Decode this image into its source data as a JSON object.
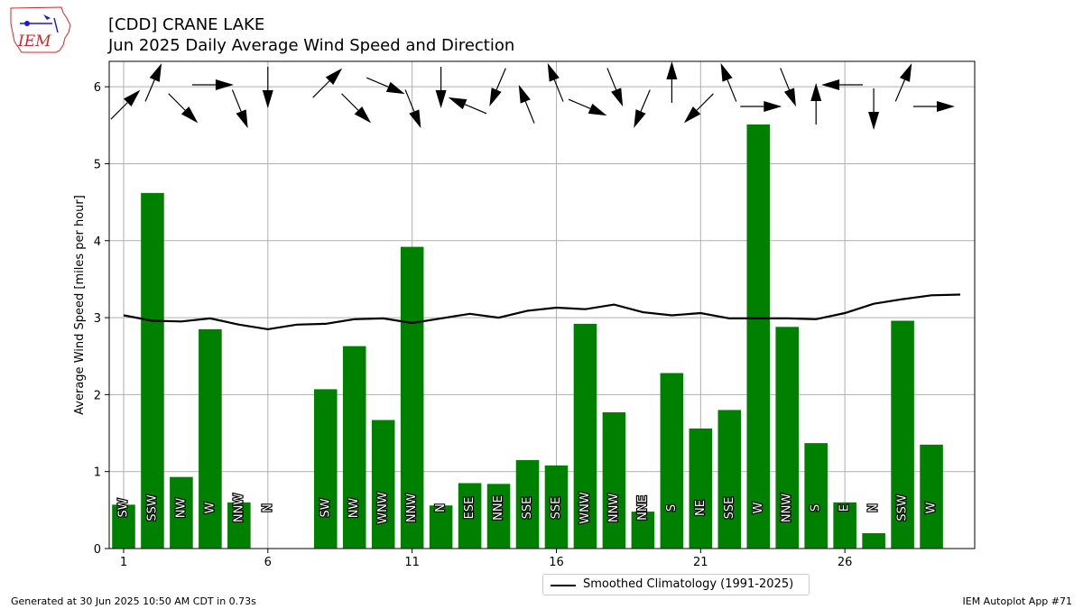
{
  "logo": {
    "text": "IEM"
  },
  "header": {
    "title_line1": "[CDD] CRANE LAKE",
    "title_line2": "Jun 2025 Daily Average Wind Speed and Direction"
  },
  "footer": {
    "left": "Generated at 30 Jun 2025 10:50 AM CDT in 0.73s",
    "right": "IEM Autoplot App #71"
  },
  "colors": {
    "bar": "#008000",
    "climatology": "#000000",
    "grid": "#b0b0b0",
    "arrow": "#000000"
  },
  "chart_data": {
    "type": "bar",
    "title": "[CDD] CRANE LAKE",
    "subtitle": "Jun 2025 Daily Average Wind Speed and Direction",
    "xlabel": "",
    "ylabel": "Average Wind Speed [miles per hour]",
    "xlim": [
      0.5,
      30.5
    ],
    "ylim": [
      0,
      6.33
    ],
    "xticks": [
      1,
      6,
      11,
      16,
      21,
      26
    ],
    "yticks": [
      0,
      1,
      2,
      3,
      4,
      5,
      6
    ],
    "grid": true,
    "legend_position": "bottom-center",
    "days": [
      1,
      2,
      3,
      4,
      5,
      6,
      7,
      8,
      9,
      10,
      11,
      12,
      13,
      14,
      15,
      16,
      17,
      18,
      19,
      20,
      21,
      22,
      23,
      24,
      25,
      26,
      27,
      28,
      29
    ],
    "series": [
      {
        "name": "Average Wind Speed",
        "type": "bar",
        "values": [
          0.57,
          4.62,
          0.93,
          2.85,
          0.6,
          0.0,
          null,
          2.07,
          2.63,
          1.67,
          3.92,
          0.56,
          0.85,
          0.84,
          1.15,
          1.08,
          2.92,
          1.77,
          0.48,
          2.28,
          1.56,
          1.8,
          5.51,
          2.88,
          1.37,
          0.6,
          0.2,
          2.96,
          1.35
        ]
      },
      {
        "name": "Smoothed Climatology (1991-2025)",
        "type": "line",
        "x": [
          1,
          2,
          3,
          4,
          5,
          6,
          7,
          8,
          9,
          10,
          11,
          12,
          13,
          14,
          15,
          16,
          17,
          18,
          19,
          20,
          21,
          22,
          23,
          24,
          25,
          26,
          27,
          28,
          29,
          30
        ],
        "values": [
          3.03,
          2.96,
          2.95,
          2.99,
          2.91,
          2.85,
          2.91,
          2.92,
          2.98,
          2.99,
          2.93,
          2.99,
          3.05,
          3.0,
          3.09,
          3.13,
          3.11,
          3.17,
          3.07,
          3.03,
          3.06,
          2.99,
          2.99,
          2.99,
          2.98,
          3.06,
          3.18,
          3.24,
          3.29,
          3.3
        ]
      }
    ],
    "direction_labels": [
      "SW",
      "SSW",
      "NW",
      "W",
      "NNW",
      "N",
      "",
      "SW",
      "NW",
      "WNW",
      "NNW",
      "N",
      "ESE",
      "NNE",
      "SSE",
      "SSE",
      "WNW",
      "NNW",
      "NNE",
      "S",
      "NE",
      "SSE",
      "W",
      "NNW",
      "S",
      "E",
      "N",
      "SSW",
      "W"
    ],
    "direction_degrees": [
      225,
      203,
      315,
      270,
      338,
      0,
      null,
      225,
      315,
      293,
      338,
      0,
      113,
      23,
      158,
      158,
      293,
      338,
      23,
      180,
      45,
      158,
      270,
      338,
      180,
      90,
      0,
      203,
      270
    ]
  }
}
